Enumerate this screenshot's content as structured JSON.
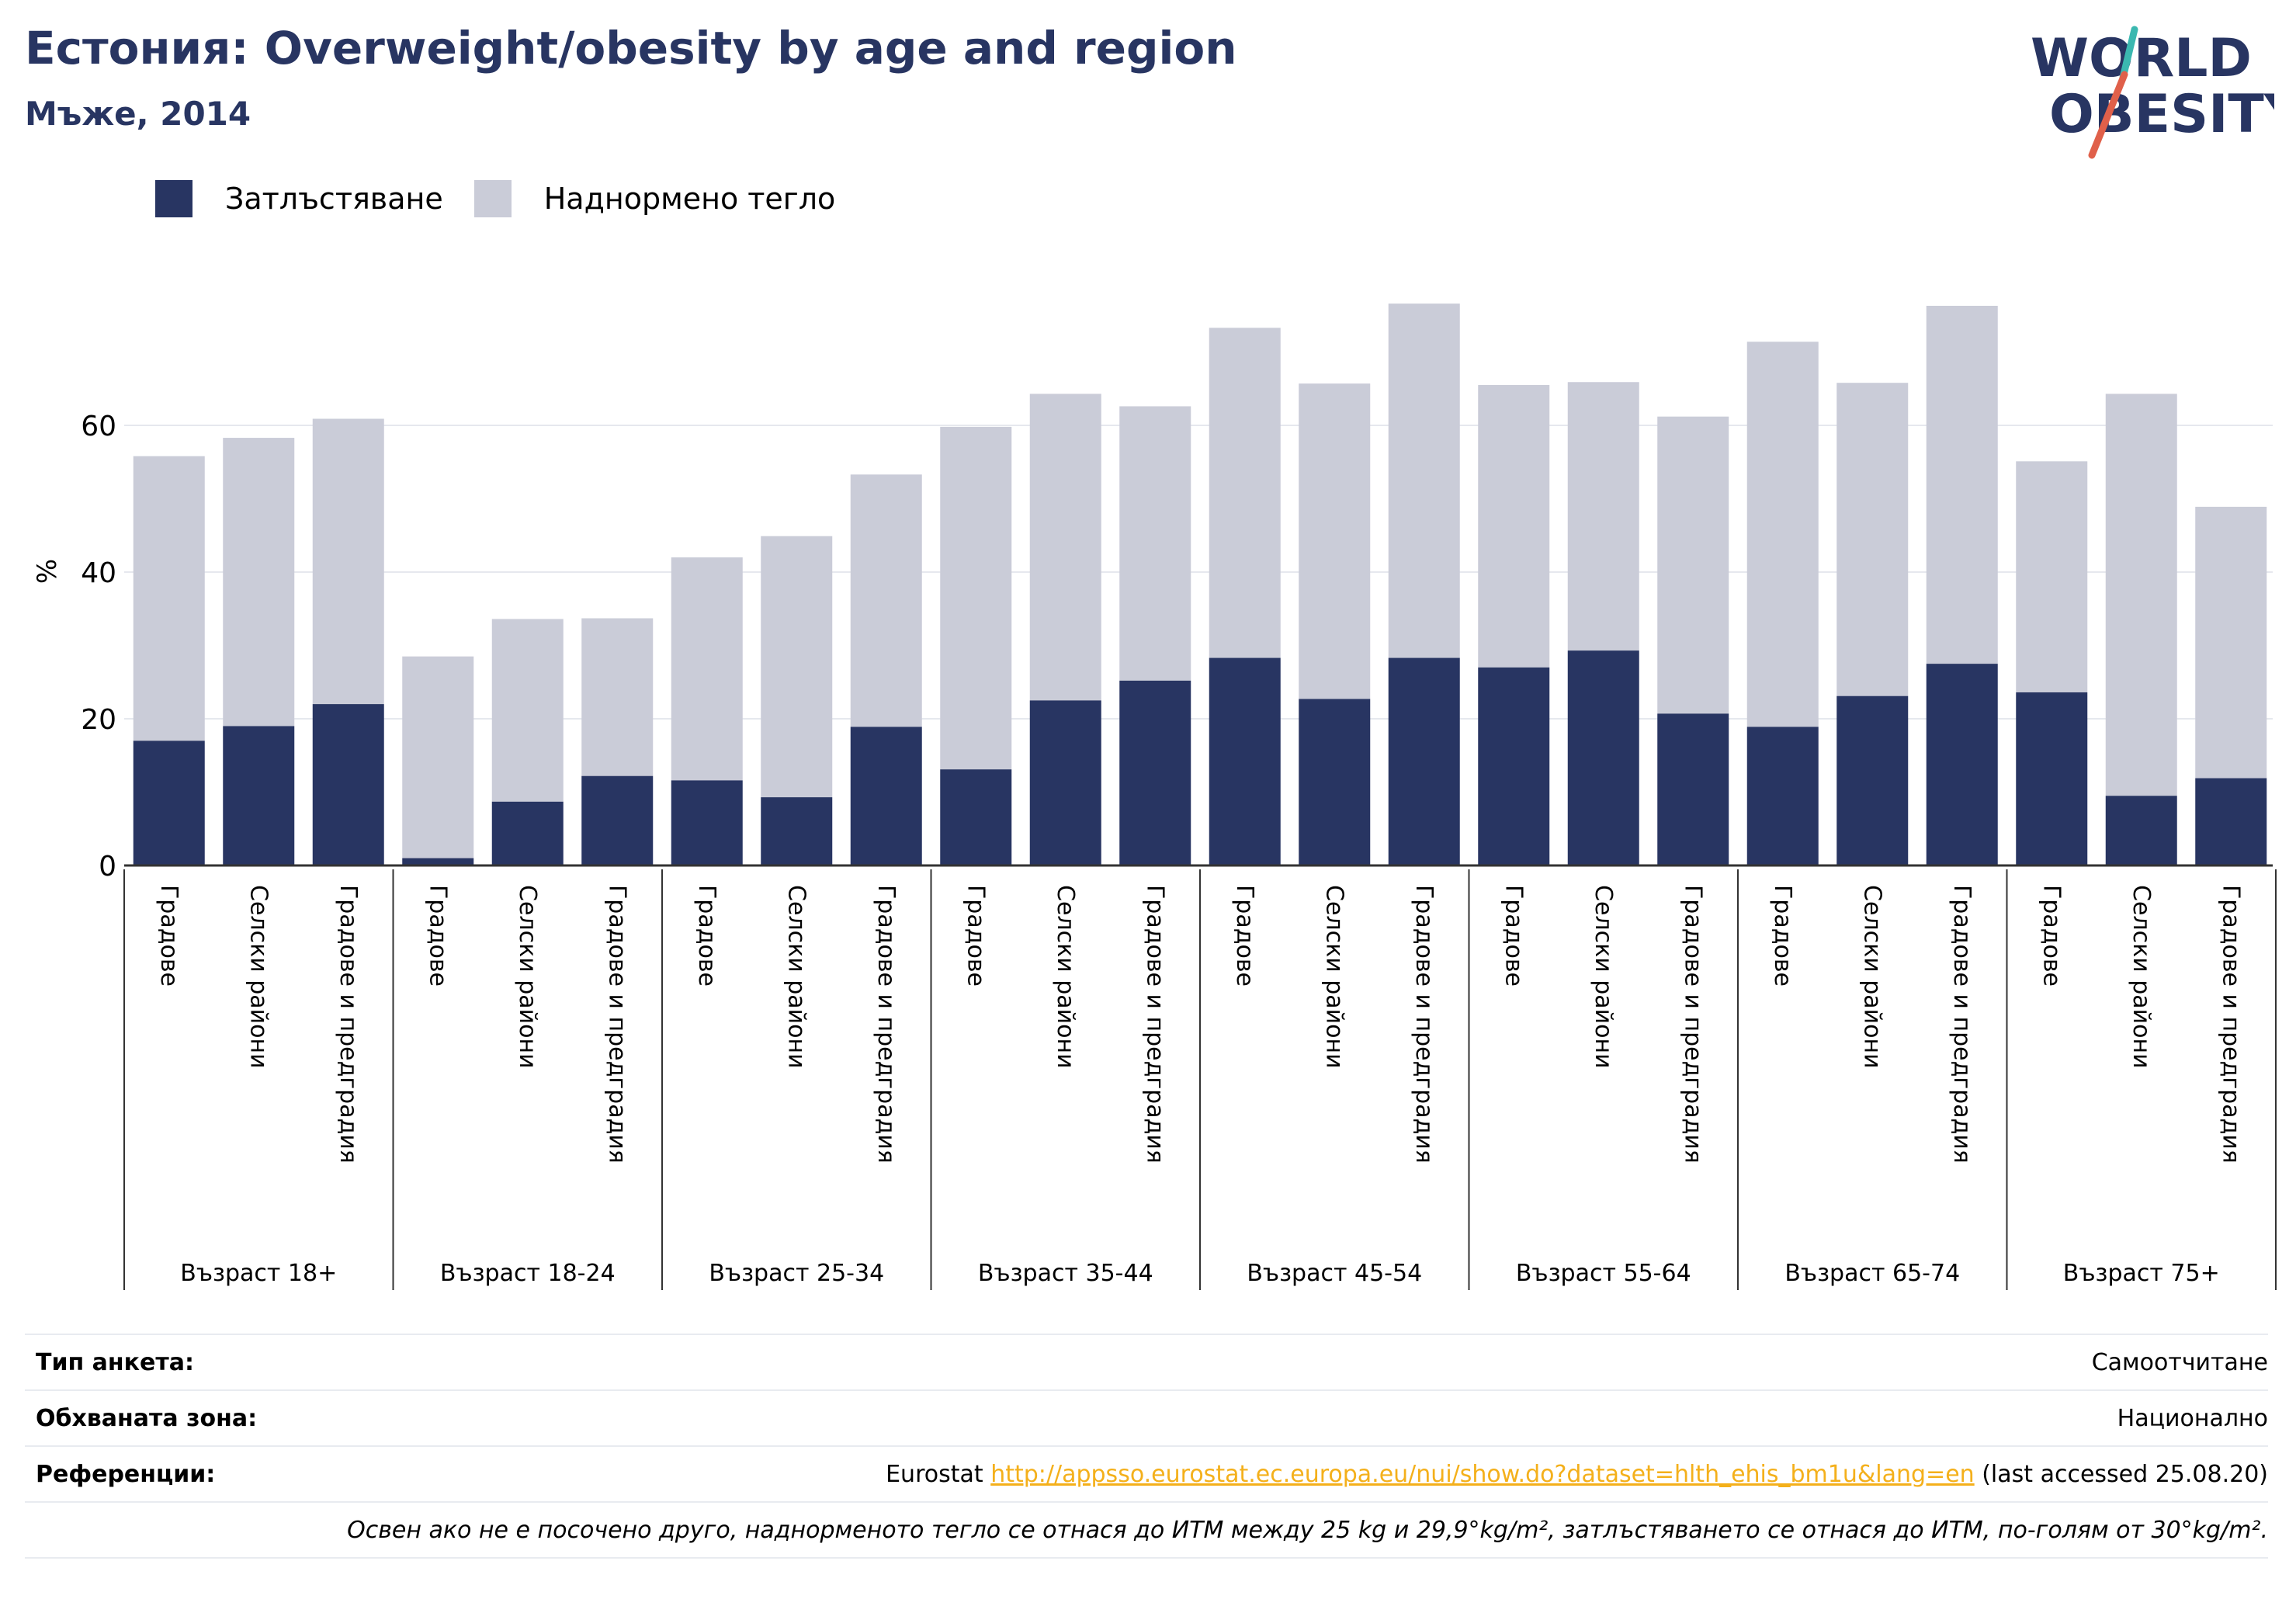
{
  "header": {
    "title": "Естония: Overweight/obesity by age and region",
    "subtitle": "Мъже, 2014"
  },
  "logo": {
    "line1": "WORLD",
    "line2": "OBESITY",
    "icon": "world-obesity-logo"
  },
  "colors": {
    "obesity": "#283562",
    "overweight": "#caccd8",
    "accent": "#f4b01b",
    "logo_slash_red": "#e0604a",
    "logo_slash_teal": "#3bb8b0"
  },
  "legend": {
    "obesity_label": "Затлъстяване",
    "overweight_label": "Наднормено тегло"
  },
  "chart_data": {
    "type": "bar",
    "stacked": true,
    "ylabel": "%",
    "ylim": [
      0,
      80
    ],
    "yticks": [
      0,
      20,
      40,
      60
    ],
    "grid": true,
    "legend_position": "top-left",
    "groups": [
      {
        "label": "Възраст 18+",
        "categories": [
          "Градове",
          "Селски райони",
          "Градове и предградия"
        ],
        "obesity": [
          17.0,
          19.0,
          22.0
        ],
        "total": [
          55.8,
          58.3,
          60.9
        ]
      },
      {
        "label": "Възраст 18-24",
        "categories": [
          "Градове",
          "Селски райони",
          "Градове и предградия"
        ],
        "obesity": [
          1.0,
          8.7,
          12.2
        ],
        "total": [
          28.5,
          33.6,
          33.7
        ]
      },
      {
        "label": "Възраст 25-34",
        "categories": [
          "Градове",
          "Селски райони",
          "Градове и предградия"
        ],
        "obesity": [
          11.6,
          9.3,
          18.9
        ],
        "total": [
          42.0,
          44.9,
          53.3
        ]
      },
      {
        "label": "Възраст 35-44",
        "categories": [
          "Градове",
          "Селски райони",
          "Градове и предградия"
        ],
        "obesity": [
          13.1,
          22.5,
          25.2
        ],
        "total": [
          59.8,
          64.3,
          62.6
        ]
      },
      {
        "label": "Възраст 45-54",
        "categories": [
          "Градове",
          "Селски райони",
          "Градове и предградия"
        ],
        "obesity": [
          28.3,
          22.7,
          28.3
        ],
        "total": [
          73.3,
          65.7,
          76.6
        ]
      },
      {
        "label": "Възраст 55-64",
        "categories": [
          "Градове",
          "Селски райони",
          "Градове и предградия"
        ],
        "obesity": [
          27.0,
          29.3,
          20.7
        ],
        "total": [
          65.5,
          65.9,
          61.2
        ]
      },
      {
        "label": "Възраст 65-74",
        "categories": [
          "Градове",
          "Селски райони",
          "Градове и предградия"
        ],
        "obesity": [
          18.9,
          23.1,
          27.5
        ],
        "total": [
          71.4,
          65.8,
          76.3
        ]
      },
      {
        "label": "Възраст 75+",
        "categories": [
          "Градове",
          "Селски райони",
          "Градове и предградия"
        ],
        "obesity": [
          23.6,
          9.5,
          11.9
        ],
        "total": [
          55.1,
          64.3,
          48.9
        ]
      }
    ],
    "series": [
      {
        "name": "Затлъстяване",
        "key": "obesity"
      },
      {
        "name": "Наднормено тегло",
        "key": "overweight"
      }
    ]
  },
  "info": {
    "survey_label": "Тип анкета:",
    "survey_value": "Самоотчитане",
    "coverage_label": "Обхваната зона:",
    "coverage_value": "Национално",
    "refs_label": "Референции:",
    "refs_prefix": "Eurostat",
    "refs_link": "http://appsso.eurostat.ec.europa.eu/nui/show.do?dataset=hlth_ehis_bm1u&lang=en",
    "refs_suffix": "(last accessed 25.08.20)",
    "note": "Освен ако не е посочено друго, наднорменото тегло се отнася до ИТМ между 25 kg и 29,9°kg/m², затлъстяването се отнася до ИТМ, по-голям от 30°kg/m²."
  }
}
